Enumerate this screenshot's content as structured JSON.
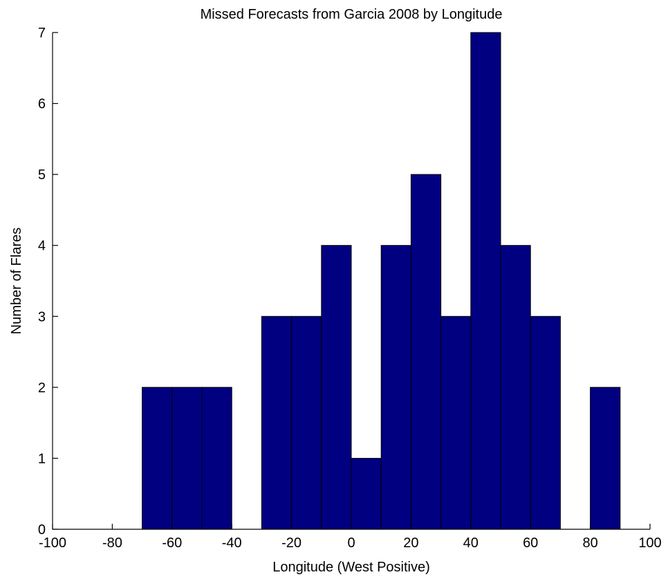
{
  "chart_data": {
    "type": "bar",
    "title": "Missed Forecasts from Garcia 2008 by Longitude",
    "xlabel": "Longitude (West Positive)",
    "ylabel": "Number of Flares",
    "xlim": [
      -100,
      100
    ],
    "ylim": [
      0,
      7
    ],
    "xticks": [
      "-100",
      "-80",
      "-60",
      "-40",
      "-20",
      "0",
      "20",
      "40",
      "60",
      "80",
      "100"
    ],
    "yticks": [
      "0",
      "1",
      "2",
      "3",
      "4",
      "5",
      "6",
      "7"
    ],
    "grid": false,
    "bar_color": "#000080",
    "bins": [
      {
        "x0": -70,
        "x1": -60,
        "value": 2
      },
      {
        "x0": -60,
        "x1": -50,
        "value": 2
      },
      {
        "x0": -50,
        "x1": -40,
        "value": 2
      },
      {
        "x0": -30,
        "x1": -20,
        "value": 3
      },
      {
        "x0": -20,
        "x1": -10,
        "value": 3
      },
      {
        "x0": -10,
        "x1": 0,
        "value": 4
      },
      {
        "x0": 0,
        "x1": 10,
        "value": 1
      },
      {
        "x0": 10,
        "x1": 20,
        "value": 4
      },
      {
        "x0": 20,
        "x1": 30,
        "value": 5
      },
      {
        "x0": 30,
        "x1": 40,
        "value": 3
      },
      {
        "x0": 40,
        "x1": 50,
        "value": 7
      },
      {
        "x0": 50,
        "x1": 60,
        "value": 4
      },
      {
        "x0": 60,
        "x1": 70,
        "value": 3
      },
      {
        "x0": 80,
        "x1": 90,
        "value": 2
      }
    ]
  }
}
